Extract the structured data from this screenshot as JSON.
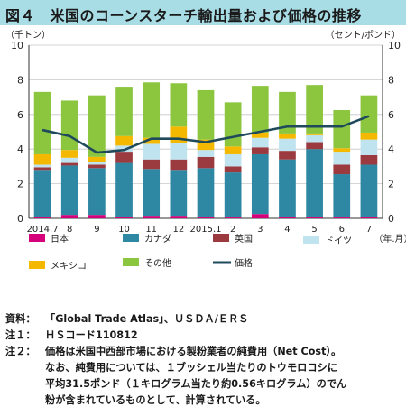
{
  "figure_title": "図４　米国のコーンスターチ輸出量および価格の推移",
  "notes": {
    "source_label": "資料：",
    "source_text": "「Global Trade Atlas」、ＵＳＤＡ/ＥＲＳ",
    "note1_label": "注１：",
    "note1_text": "ＨＳコード110812",
    "note2_label": "注２：",
    "note2_line1": "価格は米国中西部市場における製粉業者の純費用（Net Cost）。",
    "note2_line2": "なお、純費用については、１ブッシェル当たりのトウモロコシに",
    "note2_line3": "平均31.5ポンド（１キログラム当たり約0.56キログラム）のでん",
    "note2_line4": "粉が含まれているものとして、計算されている。"
  },
  "chart_data": {
    "type": "bar",
    "stacked": true,
    "categories": [
      "2014.7",
      "8",
      "9",
      "10",
      "11",
      "12",
      "2015.1",
      "2",
      "3",
      "4",
      "5",
      "6",
      "7"
    ],
    "xlabel": "（年.月）",
    "ylabel_left": "（千トン）",
    "ylabel_right": "（セント/ポンド）",
    "ylim_left": [
      0,
      10
    ],
    "ylim_right": [
      0,
      10
    ],
    "yticks": [
      0,
      2,
      4,
      6,
      8,
      10
    ],
    "grid": true,
    "legend_position": "bottom",
    "series": [
      {
        "name": "日本",
        "color": "#d6007a",
        "values": [
          0.1,
          0.2,
          0.2,
          0.1,
          0.15,
          0.15,
          0.1,
          0.05,
          0.25,
          0.1,
          0.1,
          0.05,
          0.1
        ]
      },
      {
        "name": "カナダ",
        "color": "#2e87a3",
        "values": [
          2.7,
          2.85,
          2.7,
          3.1,
          2.7,
          2.65,
          2.8,
          2.6,
          3.45,
          3.3,
          3.9,
          2.5,
          3.0
        ]
      },
      {
        "name": "英国",
        "color": "#9b3a3f",
        "values": [
          0.15,
          0.15,
          0.2,
          0.65,
          0.55,
          0.6,
          0.65,
          0.35,
          0.4,
          0.5,
          0.4,
          0.55,
          0.55
        ]
      },
      {
        "name": "ドイツ",
        "color": "#bfe3ef",
        "values": [
          0.15,
          0.3,
          0.15,
          0.35,
          0.9,
          0.95,
          0.4,
          0.7,
          0.55,
          0.7,
          0.4,
          0.75,
          0.9
        ]
      },
      {
        "name": "メキシコ",
        "color": "#f5b800",
        "values": [
          0.6,
          0.45,
          0.3,
          0.55,
          0.35,
          0.95,
          0.6,
          0.45,
          0.3,
          0.3,
          0.1,
          0.2,
          0.4
        ]
      },
      {
        "name": "その他",
        "color": "#8cc63f",
        "values": [
          3.6,
          2.85,
          3.55,
          2.85,
          3.2,
          2.5,
          2.85,
          2.55,
          2.7,
          2.4,
          2.8,
          2.2,
          2.15
        ]
      },
      {
        "name": "価格",
        "color": "#1f4a5c",
        "kind": "line",
        "axis": "right",
        "values": [
          5.1,
          4.75,
          3.8,
          3.95,
          4.6,
          4.6,
          4.4,
          4.7,
          5.0,
          5.3,
          5.3,
          5.3,
          5.9
        ]
      }
    ]
  }
}
